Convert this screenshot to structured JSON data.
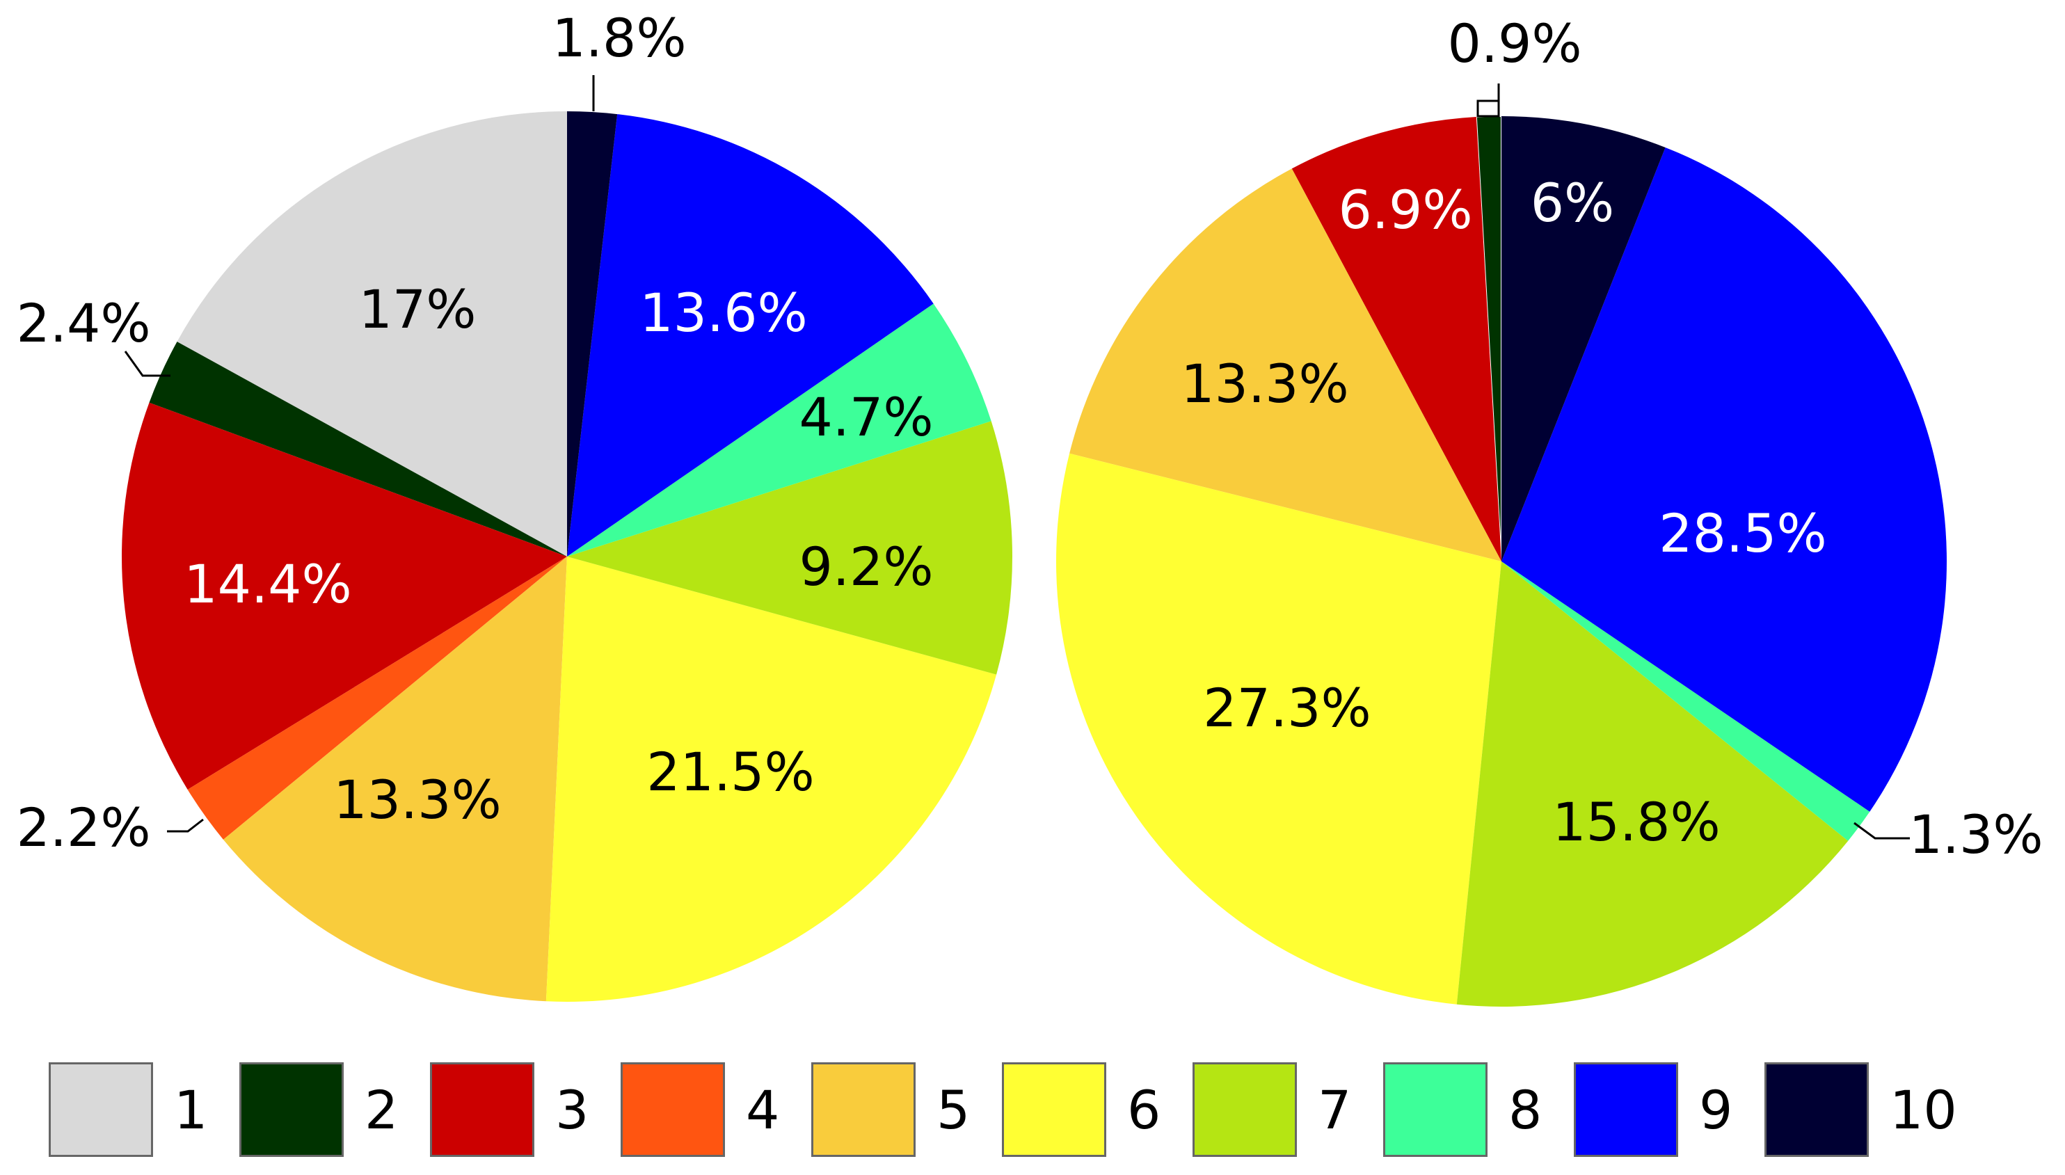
{
  "chart_data": [
    {
      "type": "pie",
      "title": "",
      "categories": [
        "1",
        "2",
        "3",
        "4",
        "5",
        "6",
        "7",
        "8",
        "9",
        "10"
      ],
      "values": [
        17,
        2.4,
        14.4,
        2.2,
        13.3,
        21.5,
        9.2,
        4.7,
        13.6,
        1.8
      ],
      "labels": [
        "17%",
        "2.4%",
        "14.4%",
        "2.2%",
        "13.3%",
        "21.5%",
        "9.2%",
        "4.7%",
        "13.6%",
        "1.8%"
      ]
    },
    {
      "type": "pie",
      "title": "",
      "categories": [
        "1",
        "2",
        "3",
        "4",
        "5",
        "6",
        "7",
        "8",
        "9",
        "10"
      ],
      "values": [
        0,
        0.9,
        6.9,
        0,
        13.3,
        27.3,
        15.8,
        1.3,
        28.5,
        6
      ],
      "labels": [
        "",
        "0.9%",
        "6.9%",
        "",
        "13.3%",
        "27.3%",
        "15.8%",
        "1.3%",
        "28.5%",
        "6%"
      ]
    }
  ],
  "legend": {
    "placement": "bottom",
    "items": [
      {
        "label": "1",
        "color": "#d9d9d9"
      },
      {
        "label": "2",
        "color": "#003300"
      },
      {
        "label": "3",
        "color": "#cc0000"
      },
      {
        "label": "4",
        "color": "#ff5511"
      },
      {
        "label": "5",
        "color": "#f9cc3c"
      },
      {
        "label": "6",
        "color": "#ffff33"
      },
      {
        "label": "7",
        "color": "#b5e513"
      },
      {
        "label": "8",
        "color": "#3dff99"
      },
      {
        "label": "9",
        "color": "#0000ff"
      },
      {
        "label": "10",
        "color": "#000033"
      }
    ]
  },
  "label_colors": {
    "1": "#000000",
    "2": "#000000",
    "3": "#ffffff",
    "4": "#000000",
    "5": "#000000",
    "6": "#000000",
    "7": "#000000",
    "8": "#000000",
    "9": "#ffffff",
    "10": "#ffffff"
  }
}
